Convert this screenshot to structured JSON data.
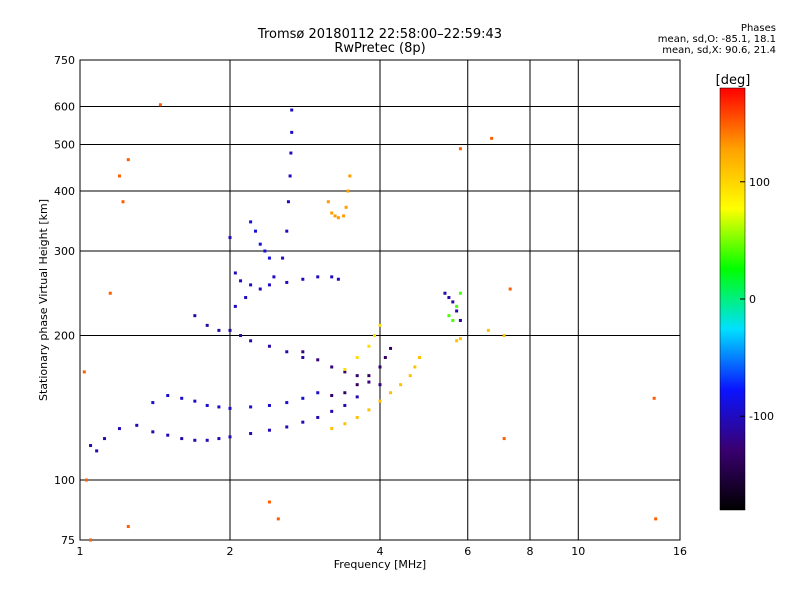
{
  "title": {
    "line1": "Tromsø 20180112 22:58:00–22:59:43",
    "line2": "RwPretec (8p)"
  },
  "phase_stats": {
    "header": "Phases",
    "o_mode": "mean, sd,O: -85.1, 18.1",
    "x_mode": "mean, sd,X:  90.6, 21.4"
  },
  "chart_data": {
    "type": "scatter",
    "xlabel": "Frequency [MHz]",
    "ylabel": "Stationary phase Virtual Height [km]",
    "x_scale": "log",
    "y_scale": "log",
    "xlim": [
      1,
      16
    ],
    "ylim": [
      75,
      750
    ],
    "x_ticks": [
      1,
      2,
      4,
      6,
      8,
      10,
      16
    ],
    "y_ticks": [
      75,
      100,
      200,
      300,
      400,
      500,
      600,
      750
    ],
    "grid": true,
    "colorbar": {
      "label": "[deg]",
      "range": [
        -180,
        180
      ],
      "ticks": [
        100,
        0,
        -100
      ],
      "colormap": [
        "#000000",
        "#3a0070",
        "#0a14ff",
        "#00e0ff",
        "#00ff00",
        "#ffff00",
        "#ffa000",
        "#ff0000"
      ]
    },
    "series": [
      {
        "values": [
          [
            1.05,
            118
          ],
          [
            1.08,
            115
          ],
          [
            1.12,
            122
          ],
          [
            1.2,
            128
          ],
          [
            1.3,
            130
          ],
          [
            1.4,
            126
          ],
          [
            1.5,
            124
          ],
          [
            1.6,
            122
          ],
          [
            1.7,
            121
          ],
          [
            1.8,
            121
          ],
          [
            1.9,
            122
          ],
          [
            2.0,
            123
          ],
          [
            2.2,
            125
          ],
          [
            2.4,
            127
          ],
          [
            2.6,
            129
          ],
          [
            2.8,
            132
          ],
          [
            3.0,
            135
          ],
          [
            3.2,
            139
          ],
          [
            3.4,
            143
          ],
          [
            3.6,
            149
          ]
        ],
        "phase": -105
      },
      {
        "values": [
          [
            1.4,
            145
          ],
          [
            1.5,
            150
          ],
          [
            1.6,
            148
          ],
          [
            1.7,
            146
          ],
          [
            1.8,
            143
          ],
          [
            1.9,
            142
          ],
          [
            2.0,
            141
          ],
          [
            2.2,
            142
          ],
          [
            2.4,
            143
          ],
          [
            2.6,
            145
          ],
          [
            2.8,
            148
          ],
          [
            3.0,
            152
          ]
        ],
        "phase": -95
      },
      {
        "values": [
          [
            2.05,
            230
          ],
          [
            2.15,
            240
          ],
          [
            2.3,
            250
          ],
          [
            2.45,
            265
          ],
          [
            2.55,
            290
          ],
          [
            2.6,
            330
          ],
          [
            2.62,
            380
          ],
          [
            2.64,
            430
          ],
          [
            2.65,
            480
          ],
          [
            2.66,
            530
          ],
          [
            2.66,
            590
          ]
        ],
        "phase": -100
      },
      {
        "values": [
          [
            2.0,
            320
          ],
          [
            2.05,
            270
          ],
          [
            2.1,
            260
          ],
          [
            2.2,
            255
          ],
          [
            2.4,
            255
          ],
          [
            2.6,
            258
          ],
          [
            2.8,
            262
          ],
          [
            3.0,
            265
          ],
          [
            3.2,
            265
          ],
          [
            3.3,
            262
          ]
        ],
        "phase": -100
      },
      {
        "values": [
          [
            1.7,
            220
          ],
          [
            1.8,
            210
          ],
          [
            1.9,
            205
          ],
          [
            2.0,
            205
          ],
          [
            2.1,
            200
          ],
          [
            2.2,
            195
          ],
          [
            2.4,
            190
          ],
          [
            2.6,
            185
          ],
          [
            2.8,
            180
          ]
        ],
        "phase": -110
      },
      {
        "values": [
          [
            2.2,
            345
          ],
          [
            2.25,
            330
          ],
          [
            2.3,
            310
          ],
          [
            2.35,
            300
          ],
          [
            2.4,
            290
          ]
        ],
        "phase": -90
      },
      {
        "values": [
          [
            2.8,
            185
          ],
          [
            3.0,
            178
          ],
          [
            3.2,
            172
          ],
          [
            3.4,
            168
          ],
          [
            3.6,
            165
          ],
          [
            3.8,
            160
          ],
          [
            4.0,
            158
          ]
        ],
        "phase": -125
      },
      {
        "values": [
          [
            3.2,
            150
          ],
          [
            3.4,
            152
          ],
          [
            3.6,
            158
          ],
          [
            3.8,
            165
          ],
          [
            4.0,
            172
          ],
          [
            4.1,
            180
          ],
          [
            4.2,
            188
          ]
        ],
        "phase": -135
      },
      {
        "values": [
          [
            3.2,
            128
          ],
          [
            3.4,
            131
          ],
          [
            3.6,
            135
          ],
          [
            3.8,
            140
          ],
          [
            4.0,
            146
          ],
          [
            4.2,
            152
          ],
          [
            4.4,
            158
          ],
          [
            4.6,
            165
          ],
          [
            4.7,
            172
          ],
          [
            4.8,
            180
          ]
        ],
        "phase": 110
      },
      {
        "values": [
          [
            3.4,
            170
          ],
          [
            3.6,
            180
          ],
          [
            3.8,
            190
          ],
          [
            3.9,
            200
          ],
          [
            4.0,
            210
          ]
        ],
        "phase": 95
      },
      {
        "values": [
          [
            3.15,
            380
          ],
          [
            3.2,
            360
          ],
          [
            3.25,
            355
          ],
          [
            3.3,
            352
          ],
          [
            3.38,
            355
          ],
          [
            3.42,
            370
          ],
          [
            3.45,
            400
          ],
          [
            3.48,
            430
          ]
        ],
        "phase": 130
      },
      {
        "values": [
          [
            5.4,
            245
          ],
          [
            5.5,
            240
          ],
          [
            5.6,
            235
          ],
          [
            5.7,
            225
          ],
          [
            5.8,
            215
          ]
        ],
        "phase": -110
      },
      {
        "values": [
          [
            5.5,
            220
          ],
          [
            5.6,
            215
          ],
          [
            5.7,
            230
          ],
          [
            5.8,
            245
          ]
        ],
        "phase": 40
      },
      {
        "values": [
          [
            5.7,
            195
          ],
          [
            5.8,
            197
          ],
          [
            6.6,
            205
          ],
          [
            7.1,
            200
          ]
        ],
        "phase": 110
      },
      {
        "values": [
          [
            1.45,
            605
          ],
          [
            1.25,
            465
          ],
          [
            1.2,
            430
          ],
          [
            1.22,
            380
          ],
          [
            1.15,
            245
          ],
          [
            6.7,
            515
          ],
          [
            5.8,
            490
          ],
          [
            7.3,
            250
          ],
          [
            7.1,
            122
          ],
          [
            14.2,
            148
          ],
          [
            14.3,
            83
          ],
          [
            2.4,
            90
          ],
          [
            2.5,
            83
          ],
          [
            1.25,
            80
          ],
          [
            1.05,
            75
          ],
          [
            1.02,
            168
          ],
          [
            1.03,
            100
          ]
        ],
        "phase": 150
      }
    ]
  }
}
